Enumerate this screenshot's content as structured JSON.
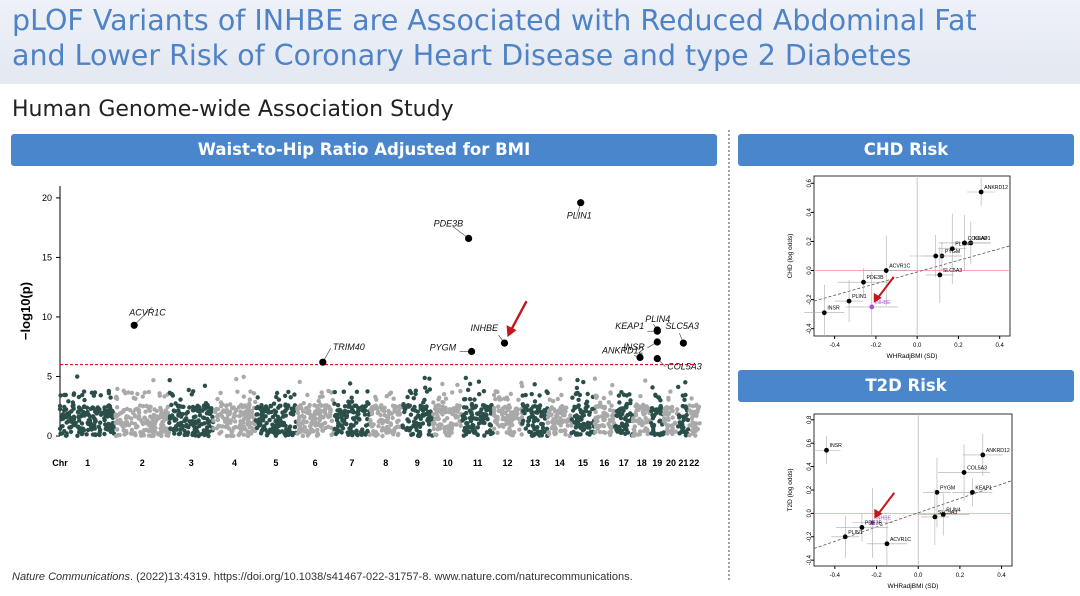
{
  "title": {
    "line1": "pLOF Variants of INHBE are Associated with Reduced Abdominal Fat",
    "line2": "and Lower Risk of Coronary Heart Disease and type 2 Diabetes"
  },
  "subtitle": "Human Genome-wide Association Study",
  "panels": {
    "left": "Waist-to-Hip Ratio Adjusted for BMI",
    "chd": "CHD Risk",
    "t2d": "T2D Risk"
  },
  "citation": {
    "journal": "Nature Communications",
    "rest": ". (2022)13:4319. https://doi.org/10.1038/s41467-022-31757-8. www.nature.com/naturecommunications."
  },
  "colors": {
    "title": "#4f82c7",
    "header_bg": "#4a86cb",
    "manhattan_dark": "#2a4f4a",
    "manhattan_light": "#a9a9a9",
    "threshold": "#e0161b",
    "arrow": "#c4161c",
    "inhbe": "#b04fd6"
  },
  "chart_data": [
    {
      "type": "scatter",
      "name": "manhattan",
      "ylabel": "−log10(p)",
      "xlabel": "Chr",
      "ylim": [
        0,
        21
      ],
      "yticks": [
        0,
        5,
        10,
        15,
        20
      ],
      "threshold": 6,
      "chromosome_labels": [
        "1",
        "2",
        "3",
        "4",
        "5",
        "6",
        "7",
        "8",
        "9",
        "10",
        "11",
        "12",
        "13",
        "14",
        "15",
        "16",
        "17",
        "18",
        "19",
        "20",
        "21",
        "22"
      ],
      "labeled_points": [
        {
          "label": "ACVR1C",
          "chr": 2,
          "y": 9.3
        },
        {
          "label": "TRIM40",
          "chr": 6,
          "y": 6.2
        },
        {
          "label": "PDE3B",
          "chr": 11,
          "y": 16.6
        },
        {
          "label": "PLIN1",
          "chr": 15,
          "y": 19.6
        },
        {
          "label": "INHBE",
          "chr": 12,
          "y": 7.8
        },
        {
          "label": "PYGM",
          "chr": 11,
          "y": 7.1
        },
        {
          "label": "KEAP1",
          "chr": 19,
          "y": 8.8
        },
        {
          "label": "PLIN4",
          "chr": 19,
          "y": 8.9
        },
        {
          "label": "INSR",
          "chr": 19,
          "y": 7.9
        },
        {
          "label": "ANKRD12",
          "chr": 18,
          "y": 6.6
        },
        {
          "label": "COL5A3",
          "chr": 19,
          "y": 6.5
        },
        {
          "label": "SLC5A3",
          "chr": 21,
          "y": 7.8
        }
      ]
    },
    {
      "type": "scatter",
      "name": "chd",
      "xlabel": "WHRadjBMI (SD)",
      "ylabel": "CHD (log odds)",
      "xlim": [
        -0.5,
        0.45
      ],
      "ylim": [
        -0.45,
        0.65
      ],
      "xticks": [
        -0.4,
        -0.2,
        0.0,
        0.2,
        0.4
      ],
      "yticks": [
        -0.4,
        -0.2,
        0.0,
        0.2,
        0.4,
        0.6
      ],
      "points": [
        {
          "label": "ANKRD12",
          "x": 0.31,
          "y": 0.54
        },
        {
          "label": "KEAP1",
          "x": 0.26,
          "y": 0.19
        },
        {
          "label": "COL5A3",
          "x": 0.23,
          "y": 0.19
        },
        {
          "label": "PLIN4",
          "x": 0.17,
          "y": 0.15
        },
        {
          "label": "PYGM",
          "x": 0.12,
          "y": 0.1
        },
        {
          "label": "PYGM_b",
          "x": 0.09,
          "y": 0.1
        },
        {
          "label": "SLC5A3",
          "x": 0.11,
          "y": -0.03
        },
        {
          "label": "ACVR1C",
          "x": -0.15,
          "y": 0.0
        },
        {
          "label": "PDE3B",
          "x": -0.26,
          "y": -0.08
        },
        {
          "label": "PLIN1",
          "x": -0.33,
          "y": -0.21
        },
        {
          "label": "INSR",
          "x": -0.45,
          "y": -0.29
        },
        {
          "label": "INHBE",
          "x": -0.22,
          "y": -0.25
        }
      ],
      "fit": [
        [
          -0.5,
          -0.21
        ],
        [
          0.45,
          0.17
        ]
      ]
    },
    {
      "type": "scatter",
      "name": "t2d",
      "xlabel": "WHRadjBMI (SD)",
      "ylabel": "T2D (log odds)",
      "xlim": [
        -0.5,
        0.45
      ],
      "ylim": [
        -0.45,
        0.85
      ],
      "xticks": [
        -0.4,
        -0.2,
        0.0,
        0.2,
        0.4
      ],
      "yticks": [
        -0.4,
        -0.2,
        0.0,
        0.2,
        0.4,
        0.6,
        0.8
      ],
      "points": [
        {
          "label": "INSR",
          "x": -0.44,
          "y": 0.54
        },
        {
          "label": "ANKRD12",
          "x": 0.31,
          "y": 0.5
        },
        {
          "label": "COL5A3",
          "x": 0.22,
          "y": 0.35
        },
        {
          "label": "PYGM",
          "x": 0.09,
          "y": 0.18
        },
        {
          "label": "KEAP1",
          "x": 0.26,
          "y": 0.18
        },
        {
          "label": "PLIN4",
          "x": 0.12,
          "y": -0.01
        },
        {
          "label": "SLC5A3",
          "x": 0.08,
          "y": -0.03
        },
        {
          "label": "INHBE",
          "x": -0.22,
          "y": -0.08
        },
        {
          "label": "PDE3B",
          "x": -0.27,
          "y": -0.12
        },
        {
          "label": "PLIN1",
          "x": -0.35,
          "y": -0.2
        },
        {
          "label": "ACVR1C",
          "x": -0.15,
          "y": -0.26
        }
      ],
      "fit": [
        [
          -0.5,
          -0.3
        ],
        [
          0.45,
          0.28
        ]
      ]
    }
  ]
}
